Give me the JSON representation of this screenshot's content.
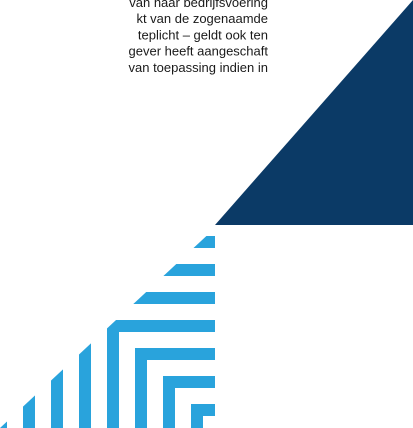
{
  "document": {
    "lines": [
      "van haar bedrijfsvoering",
      "kt van de zogenaamde",
      "teplicht – geldt ook ten",
      "gever heeft aangeschaft",
      "van toepassing indien in"
    ]
  }
}
